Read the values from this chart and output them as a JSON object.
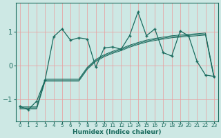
{
  "xlabel": "Humidex (Indice chaleur)",
  "bg_color": "#cde8e4",
  "line_color": "#1a6b5e",
  "grid_color": "#e8a0a0",
  "x_data": [
    0,
    1,
    2,
    3,
    4,
    5,
    6,
    7,
    8,
    9,
    10,
    11,
    12,
    13,
    14,
    15,
    16,
    17,
    18,
    19,
    20,
    21,
    22,
    23
  ],
  "y_main": [
    -1.2,
    -1.3,
    -1.05,
    -0.42,
    0.85,
    1.08,
    0.75,
    0.82,
    0.78,
    -0.05,
    0.52,
    0.55,
    0.48,
    0.88,
    1.58,
    0.88,
    1.08,
    0.38,
    0.28,
    1.02,
    0.88,
    0.12,
    -0.28,
    -0.32
  ],
  "y_band_top": [
    -1.22,
    -1.22,
    -1.22,
    -0.4,
    -0.4,
    -0.4,
    -0.4,
    -0.4,
    -0.05,
    0.18,
    0.32,
    0.42,
    0.5,
    0.6,
    0.68,
    0.75,
    0.8,
    0.84,
    0.88,
    0.9,
    0.92,
    0.94,
    0.96,
    -0.3
  ],
  "y_band_mid": [
    -1.25,
    -1.25,
    -1.25,
    -0.43,
    -0.43,
    -0.43,
    -0.43,
    -0.43,
    -0.08,
    0.15,
    0.29,
    0.39,
    0.47,
    0.57,
    0.65,
    0.72,
    0.77,
    0.81,
    0.85,
    0.87,
    0.89,
    0.91,
    0.93,
    -0.33
  ],
  "y_band_bot": [
    -1.28,
    -1.28,
    -1.28,
    -0.46,
    -0.46,
    -0.46,
    -0.46,
    -0.46,
    -0.11,
    0.12,
    0.26,
    0.36,
    0.44,
    0.54,
    0.62,
    0.69,
    0.74,
    0.78,
    0.82,
    0.84,
    0.86,
    0.88,
    0.9,
    -0.36
  ],
  "xlim": [
    -0.5,
    23.5
  ],
  "ylim": [
    -1.65,
    1.85
  ],
  "yticks": [
    -1,
    0,
    1
  ],
  "xtick_labels": [
    "0",
    "1",
    "2",
    "3",
    "4",
    "5",
    "6",
    "7",
    "8",
    "9",
    "10",
    "11",
    "12",
    "13",
    "14",
    "15",
    "16",
    "17",
    "18",
    "19",
    "20",
    "21",
    "22",
    "23"
  ]
}
